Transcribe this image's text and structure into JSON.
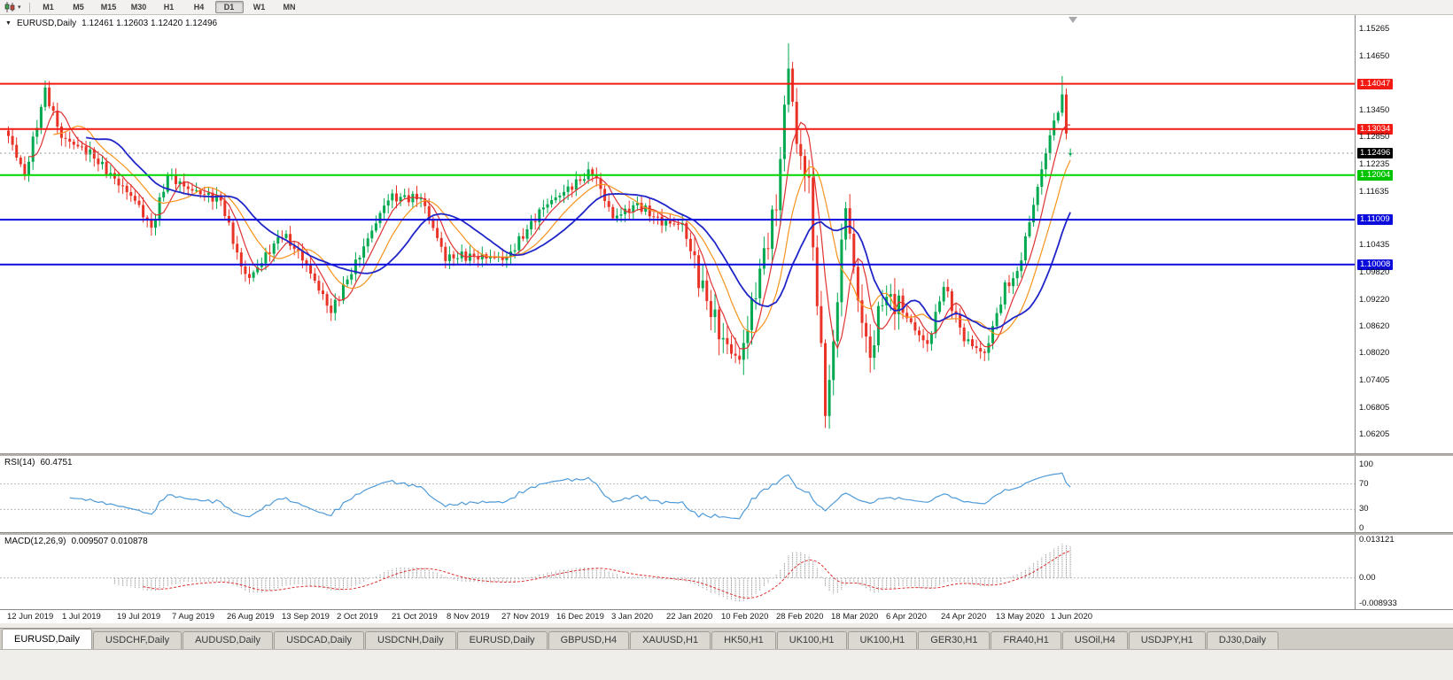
{
  "toolbar": {
    "timeframes": [
      "M1",
      "M5",
      "M15",
      "M30",
      "H1",
      "H4",
      "D1",
      "W1",
      "MN"
    ],
    "active_timeframe": "D1"
  },
  "chart_data": {
    "type": "candlestick",
    "symbol": "EURUSD",
    "period": "Daily",
    "title": "EURUSD,Daily",
    "ohlc_display": {
      "open": "1.12461",
      "high": "1.12603",
      "low": "1.12420",
      "close": "1.12496",
      "text": "1.12461 1.12603 1.12420 1.12496"
    },
    "last_candle": [
      1.12461,
      1.12603,
      1.1242,
      1.12496
    ],
    "current_price": 1.12496,
    "price_range": [
      1.06205,
      1.15265
    ],
    "num_candles": 261,
    "y_axis_ticks": [
      {
        "label": "1.15265",
        "type": "plain",
        "price": 1.15265
      },
      {
        "label": "1.14650",
        "type": "plain",
        "price": 1.1465
      },
      {
        "label": "1.14047",
        "type": "red",
        "price": 1.14047
      },
      {
        "label": "1.13450",
        "type": "plain",
        "price": 1.1345
      },
      {
        "label": "1.13034",
        "type": "red",
        "price": 1.13034
      },
      {
        "label": "1.12850",
        "type": "plain",
        "price": 1.1285
      },
      {
        "label": "1.12496",
        "type": "current",
        "price": 1.12496
      },
      {
        "label": "1.12235",
        "type": "plain",
        "price": 1.12235
      },
      {
        "label": "1.12004",
        "type": "green",
        "price": 1.12004
      },
      {
        "label": "1.11635",
        "type": "plain",
        "price": 1.11635
      },
      {
        "label": "1.11009",
        "type": "blue",
        "price": 1.11009
      },
      {
        "label": "1.10435",
        "type": "plain",
        "price": 1.10435
      },
      {
        "label": "1.10008",
        "type": "blue",
        "price": 1.10008
      },
      {
        "label": "1.09820",
        "type": "plain",
        "price": 1.0982
      },
      {
        "label": "1.09220",
        "type": "plain",
        "price": 1.0922
      },
      {
        "label": "1.08620",
        "type": "plain",
        "price": 1.0862
      },
      {
        "label": "1.08020",
        "type": "plain",
        "price": 1.0802
      },
      {
        "label": "1.07405",
        "type": "plain",
        "price": 1.07405
      },
      {
        "label": "1.06805",
        "type": "plain",
        "price": 1.06805
      },
      {
        "label": "1.06205",
        "type": "plain",
        "price": 1.06205
      }
    ],
    "levels": [
      {
        "price": 1.14047,
        "color": "#F21A12",
        "width": 2
      },
      {
        "price": 1.13034,
        "color": "#F21A12",
        "width": 2
      },
      {
        "price": 1.12004,
        "color": "#00D500",
        "width": 2
      },
      {
        "price": 1.11009,
        "color": "#0B0BDC",
        "width": 2
      },
      {
        "price": 1.10008,
        "color": "#0B0BDC",
        "width": 2
      }
    ],
    "x_axis_labels": [
      "12 Jun 2019",
      "1 Jul 2019",
      "19 Jul 2019",
      "7 Aug 2019",
      "26 Aug 2019",
      "13 Sep 2019",
      "2 Oct 2019",
      "21 Oct 2019",
      "8 Nov 2019",
      "27 Nov 2019",
      "16 Dec 2019",
      "3 Jan 2020",
      "22 Jan 2020",
      "10 Feb 2020",
      "28 Feb 2020",
      "18 Mar 2020",
      "6 Apr 2020",
      "24 Apr 2020",
      "13 May 2020",
      "1 Jun 2020"
    ],
    "waypoints": [
      [
        0,
        1.1288
      ],
      [
        4,
        1.12
      ],
      [
        9,
        1.139
      ],
      [
        13,
        1.1285
      ],
      [
        20,
        1.125
      ],
      [
        24,
        1.121
      ],
      [
        31,
        1.1145
      ],
      [
        35,
        1.108
      ],
      [
        39,
        1.12
      ],
      [
        44,
        1.117
      ],
      [
        52,
        1.1145
      ],
      [
        57,
        1.0995
      ],
      [
        59,
        1.097
      ],
      [
        67,
        1.107
      ],
      [
        72,
        1.1015
      ],
      [
        79,
        1.0895
      ],
      [
        87,
        1.104
      ],
      [
        93,
        1.115
      ],
      [
        101,
        1.115
      ],
      [
        107,
        1.1015
      ],
      [
        111,
        1.102
      ],
      [
        122,
        1.1015
      ],
      [
        131,
        1.113
      ],
      [
        143,
        1.121
      ],
      [
        148,
        1.1105
      ],
      [
        154,
        1.1135
      ],
      [
        160,
        1.1095
      ],
      [
        165,
        1.109
      ],
      [
        170,
        1.0945
      ],
      [
        175,
        1.083
      ],
      [
        179,
        1.0785
      ],
      [
        185,
        1.1025
      ],
      [
        188,
        1.1135
      ],
      [
        191,
        1.145
      ],
      [
        193,
        1.127
      ],
      [
        196,
        1.118
      ],
      [
        198,
        1.0915
      ],
      [
        200,
        1.069
      ],
      [
        201,
        1.0725
      ],
      [
        205,
        1.114
      ],
      [
        208,
        1.092
      ],
      [
        211,
        1.079
      ],
      [
        214,
        1.093
      ],
      [
        218,
        1.091
      ],
      [
        222,
        1.0855
      ],
      [
        225,
        1.082
      ],
      [
        229,
        1.0955
      ],
      [
        234,
        1.0835
      ],
      [
        239,
        1.08
      ],
      [
        244,
        1.095
      ],
      [
        247,
        1.098
      ],
      [
        251,
        1.1135
      ],
      [
        255,
        1.129
      ],
      [
        258,
        1.1375
      ],
      [
        259,
        1.1295
      ],
      [
        260,
        1.125
      ]
    ],
    "wick_overrides": [
      {
        "i": 9,
        "high": 1.1412
      },
      {
        "i": 179,
        "low": 1.0778
      },
      {
        "i": 191,
        "high": 1.1495
      },
      {
        "i": 200,
        "low": 1.0636
      },
      {
        "i": 258,
        "high": 1.1422
      }
    ],
    "high_vol_range": [
      168,
      218
    ],
    "moving_averages": [
      {
        "color_key": "ma_red",
        "period": 6,
        "width": 1.2
      },
      {
        "color_key": "ma_orange",
        "period": 12,
        "width": 1.2
      },
      {
        "color_key": "ma_blue",
        "period": 20,
        "width": 1.8
      }
    ],
    "indicators": {
      "rsi": {
        "name": "RSI(14)",
        "value": "60.4751",
        "period": 14,
        "axis_labels": [
          "100",
          "70",
          "30",
          "0"
        ],
        "axis_values": [
          100,
          70,
          30,
          0
        ],
        "guide_levels": [
          70,
          30
        ],
        "range": [
          0,
          100
        ]
      },
      "macd": {
        "name": "MACD(12,26,9)",
        "values": "0.009507 0.010878",
        "axis_labels": [
          "0.013121",
          "0.00",
          "-0.008933"
        ],
        "axis_values": [
          0.013121,
          0,
          -0.008933
        ],
        "range": [
          -0.008933,
          0.013121
        ]
      }
    }
  },
  "colors": {
    "candle_up": "#00A94F",
    "candle_down": "#E93327",
    "ma_red": "#E03131",
    "ma_orange": "#F7941D",
    "ma_blue": "#2026C8",
    "rsi_line": "#4F9BD9",
    "guide_dash": "#b8b8b8",
    "macd_hist": "#9A9A9A",
    "macd_signal": "#E03131",
    "badge_red": "#F21A12",
    "badge_green": "#00C400",
    "badge_blue": "#0B0BDC",
    "badge_current": "#000000"
  },
  "tabs": {
    "items": [
      "EURUSD,Daily",
      "USDCHF,Daily",
      "AUDUSD,Daily",
      "USDCAD,Daily",
      "USDCNH,Daily",
      "EURUSD,Daily",
      "GBPUSD,H4",
      "XAUUSD,H1",
      "HK50,H1",
      "UK100,H1",
      "UK100,H1",
      "GER30,H1",
      "FRA40,H1",
      "USOil,H4",
      "USDJPY,H1",
      "DJ30,Daily"
    ],
    "active_index": 0
  }
}
